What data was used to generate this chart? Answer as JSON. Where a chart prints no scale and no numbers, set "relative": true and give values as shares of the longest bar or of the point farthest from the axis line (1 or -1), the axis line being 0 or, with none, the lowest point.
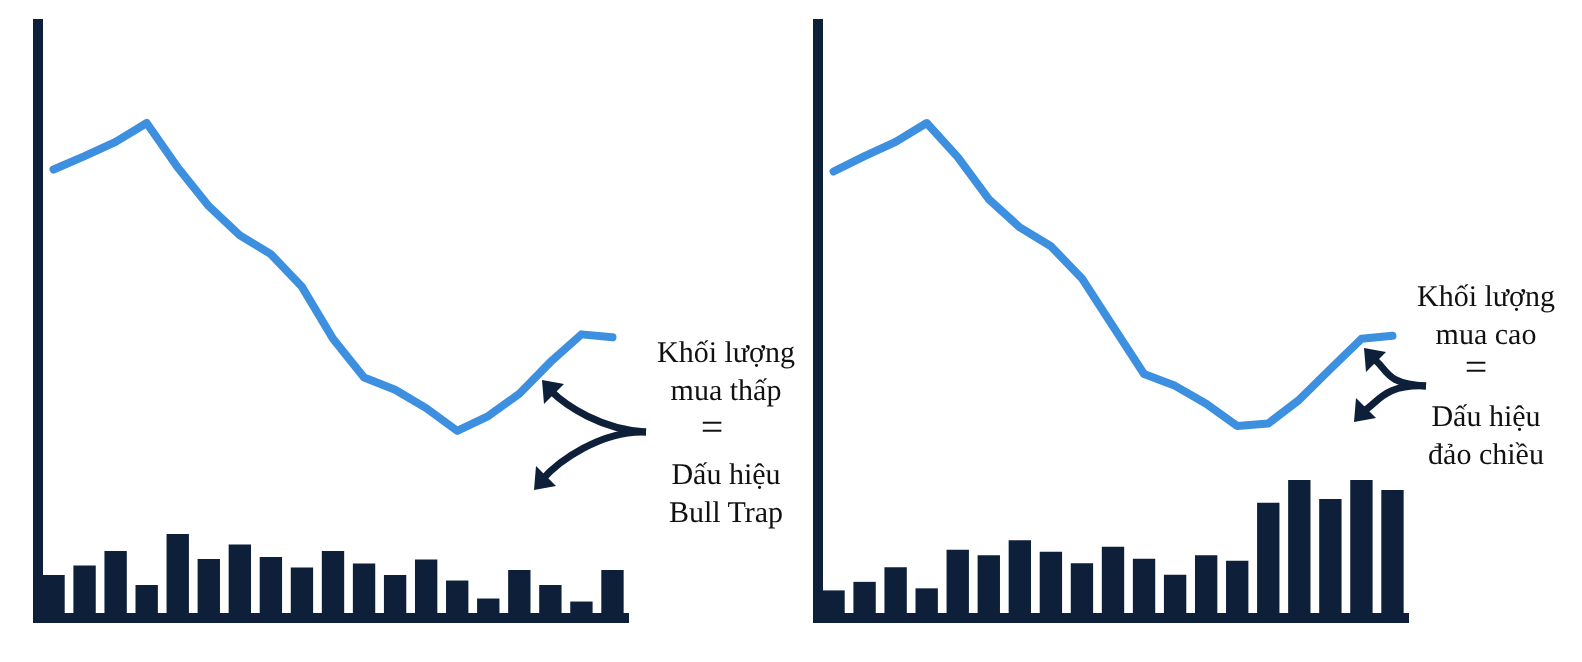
{
  "chart_data": [
    {
      "type": "line",
      "relative": true,
      "tick_labels": false,
      "categories": [
        null,
        null,
        null,
        null,
        null,
        null,
        null,
        null,
        null,
        null,
        null,
        null,
        null,
        null,
        null,
        null,
        null,
        null,
        null
      ],
      "series": [
        {
          "color": "#3d8fe0",
          "values": [
            0.906,
            0.933,
            0.962,
            1,
            0.91,
            0.832,
            0.773,
            0.735,
            0.669,
            0.564,
            0.486,
            0.461,
            0.424,
            0.378,
            0.408,
            0.453,
            0.517,
            0.573,
            0.567
          ]
        }
      ],
      "annotations": [
        "Khối lượng\nmua thấp",
        "=",
        "Dấu hiệu\nBull Trap"
      ]
    },
    {
      "type": "bar",
      "relative": true,
      "tick_labels": false,
      "categories": [
        null,
        null,
        null,
        null,
        null,
        null,
        null,
        null,
        null,
        null,
        null,
        null,
        null,
        null,
        null,
        null,
        null,
        null,
        null
      ],
      "series": [
        {
          "color": "#0e1f3a",
          "values": [
            0.512,
            0.625,
            0.798,
            0.393,
            1,
            0.702,
            0.875,
            0.726,
            0.601,
            0.798,
            0.649,
            0.512,
            0.696,
            0.446,
            0.232,
            0.571,
            0.393,
            0.196,
            0.571
          ]
        }
      ]
    },
    {
      "type": "line",
      "relative": true,
      "tick_labels": false,
      "categories": [
        null,
        null,
        null,
        null,
        null,
        null,
        null,
        null,
        null,
        null,
        null,
        null,
        null,
        null,
        null,
        null,
        null,
        null,
        null
      ],
      "series": [
        {
          "color": "#3d8fe0",
          "values": [
            0.902,
            0.933,
            0.962,
            1,
            0.931,
            0.846,
            0.789,
            0.751,
            0.686,
            0.589,
            0.493,
            0.469,
            0.433,
            0.388,
            0.393,
            0.441,
            0.503,
            0.564,
            0.57
          ]
        }
      ],
      "annotations": [
        "Khối lượng\nmua cao",
        "=",
        "Dấu hiệu\nđảo chiều"
      ]
    },
    {
      "type": "bar",
      "relative": true,
      "tick_labels": false,
      "categories": [
        null,
        null,
        null,
        null,
        null,
        null,
        null,
        null,
        null,
        null,
        null,
        null,
        null,
        null,
        null,
        null,
        null,
        null,
        null
      ],
      "series": [
        {
          "color": "#0e1f3a",
          "values": [
            0.2,
            0.262,
            0.367,
            0.215,
            0.495,
            0.455,
            0.564,
            0.48,
            0.396,
            0.516,
            0.429,
            0.313,
            0.455,
            0.415,
            0.836,
            1,
            0.862,
            1,
            0.927
          ]
        }
      ]
    }
  ]
}
